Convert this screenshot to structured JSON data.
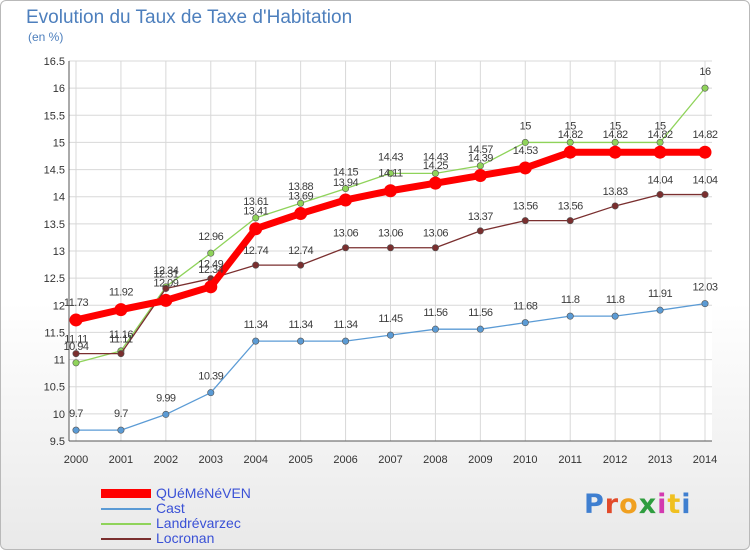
{
  "chart_data": {
    "type": "line",
    "title": "Evolution du Taux de Taxe d'Habitation",
    "subtitle": "(en %)",
    "x": [
      2000,
      2001,
      2002,
      2003,
      2004,
      2005,
      2006,
      2007,
      2008,
      2009,
      2010,
      2011,
      2012,
      2013,
      2014
    ],
    "ylim": [
      9.5,
      16.5
    ],
    "yticks": [
      9.5,
      10,
      10.5,
      11,
      11.5,
      12,
      12.5,
      13,
      13.5,
      14,
      14.5,
      15,
      15.5,
      16,
      16.5
    ],
    "grid": true,
    "legend_position": "bottom-left",
    "series": [
      {
        "name": "QUéMéNéVEN",
        "color": "#ff0000",
        "values": [
          11.73,
          11.92,
          12.09,
          12.34,
          13.41,
          13.69,
          13.94,
          14.11,
          14.25,
          14.39,
          14.53,
          14.82,
          14.82,
          14.82,
          14.82
        ],
        "labels": [
          "11.73",
          "11.92",
          "12.09",
          "12.34",
          "13.41",
          "13.69",
          "13.94",
          "14.11",
          "14.25",
          "14.39",
          "14.53",
          "14.82",
          "14.82",
          "14.82",
          "14.82"
        ]
      },
      {
        "name": "Cast",
        "color": "#5b9bd5",
        "values": [
          9.7,
          9.7,
          9.99,
          10.39,
          11.34,
          11.34,
          11.34,
          11.45,
          11.56,
          11.56,
          11.68,
          11.8,
          11.8,
          11.91,
          12.03
        ],
        "labels": [
          "9.7",
          "9.7",
          "9.99",
          "10.39",
          "11.34",
          "11.34",
          "11.34",
          "11.45",
          "11.56",
          "11.56",
          "11.68",
          "11.8",
          "11.8",
          "11.91",
          "12.03"
        ]
      },
      {
        "name": "Landrévarzec",
        "color": "#8fd35a",
        "values": [
          10.94,
          11.16,
          12.34,
          12.96,
          13.61,
          13.88,
          14.15,
          14.43,
          14.43,
          14.57,
          15,
          15,
          15,
          15,
          16
        ],
        "labels": [
          "10.94",
          "11.16",
          "12.34",
          "12.96",
          "13.61",
          "13.88",
          "14.15",
          "14.43",
          "14.43",
          "14.57",
          "15",
          "15",
          "15",
          "15",
          "16"
        ]
      },
      {
        "name": "Locronan",
        "color": "#7a2f2f",
        "values": [
          11.11,
          11.11,
          12.31,
          12.49,
          12.74,
          12.74,
          13.06,
          13.06,
          13.06,
          13.37,
          13.56,
          13.56,
          13.83,
          14.04,
          14.04
        ],
        "labels": [
          "11.11",
          "11.11",
          "12.31",
          "12.49",
          "12.74",
          "12.74",
          "13.06",
          "13.06",
          "13.06",
          "13.37",
          "13.56",
          "13.56",
          "13.83",
          "14.04",
          "14.04"
        ]
      }
    ]
  },
  "logo": {
    "text": "Proxiti"
  }
}
